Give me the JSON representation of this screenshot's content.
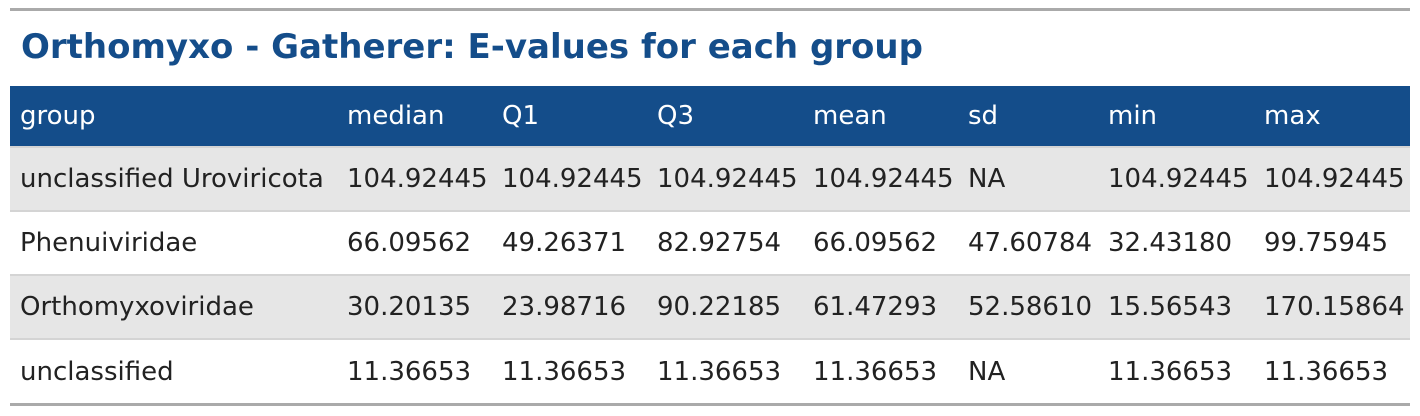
{
  "title": "Orthomyxo - Gatherer: E-values for each group",
  "colors": {
    "accent": "#144d8a",
    "header_text": "#ffffff",
    "row_stripe": "#e6e6e6",
    "rule": "#aaaaaa"
  },
  "table": {
    "headers": [
      "group",
      "median",
      "Q1",
      "Q3",
      "mean",
      "sd",
      "min",
      "max"
    ],
    "rows": [
      [
        "unclassified Uroviricota",
        "104.92445",
        "104.92445",
        "104.92445",
        "104.92445",
        "NA",
        "104.92445",
        "104.92445"
      ],
      [
        "Phenuiviridae",
        "66.09562",
        "49.26371",
        "82.92754",
        "66.09562",
        "47.60784",
        "32.43180",
        "99.75945"
      ],
      [
        "Orthomyxoviridae",
        "30.20135",
        "23.98716",
        "90.22185",
        "61.47293",
        "52.58610",
        "15.56543",
        "170.15864"
      ],
      [
        "unclassified",
        "11.36653",
        "11.36653",
        "11.36653",
        "11.36653",
        "NA",
        "11.36653",
        "11.36653"
      ]
    ]
  }
}
